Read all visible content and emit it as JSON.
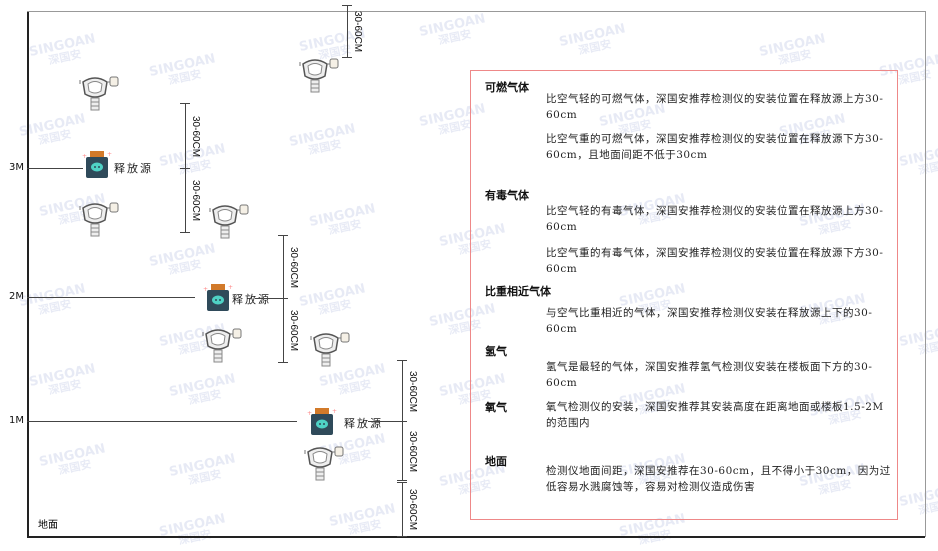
{
  "watermark": {
    "brand": "SINGOAN",
    "cn": "深国安"
  },
  "levels": [
    "3M",
    "2M",
    "1M"
  ],
  "ground_label": "地面",
  "dimension_label": "30-60CM",
  "source_label": "释放源",
  "colors": {
    "box_border": "#ee8888",
    "source_body": "#2f4a5a",
    "source_cap": "#d27a2a",
    "source_face": "#4fd1c5"
  },
  "info": {
    "sections": [
      {
        "title": "可燃气体",
        "paragraphs": [
          "比空气轻的可燃气体，深国安推荐检测仪的安装位置在释放源上方30-60cm",
          "比空气重的可燃气体，深国安推荐检测仪的安装位置在释放源下方30-60cm，且地面间距不低于30cm"
        ]
      },
      {
        "title": "有毒气体",
        "paragraphs": [
          "比空气轻的有毒气体，深国安推荐检测仪的安装位置在释放源上方30-60cm",
          "比空气重的有毒气体，深国安推荐检测仪的安装位置在释放源下方30-60cm"
        ]
      },
      {
        "title": "比重相近气体",
        "paragraphs": [
          "与空气比重相近的气体，深国安推荐检测仪安装在释放源上下的30-60cm"
        ]
      },
      {
        "title": "氢气",
        "paragraphs": [
          "氢气是最轻的气体，深国安推荐氢气检测仪安装在楼板面下方的30-60cm"
        ]
      },
      {
        "title": "氧气",
        "paragraphs": [
          "氧气检测仪的安装，深国安推荐其安装高度在距离地面或楼板1.5-2M的范围内"
        ]
      },
      {
        "title": "地面",
        "paragraphs": [
          "检测仪地面间距，深国安推荐在30-60cm，且不得小于30cm，因为过低容易水溅腐蚀等，容易对检测仪造成伤害"
        ]
      }
    ]
  }
}
